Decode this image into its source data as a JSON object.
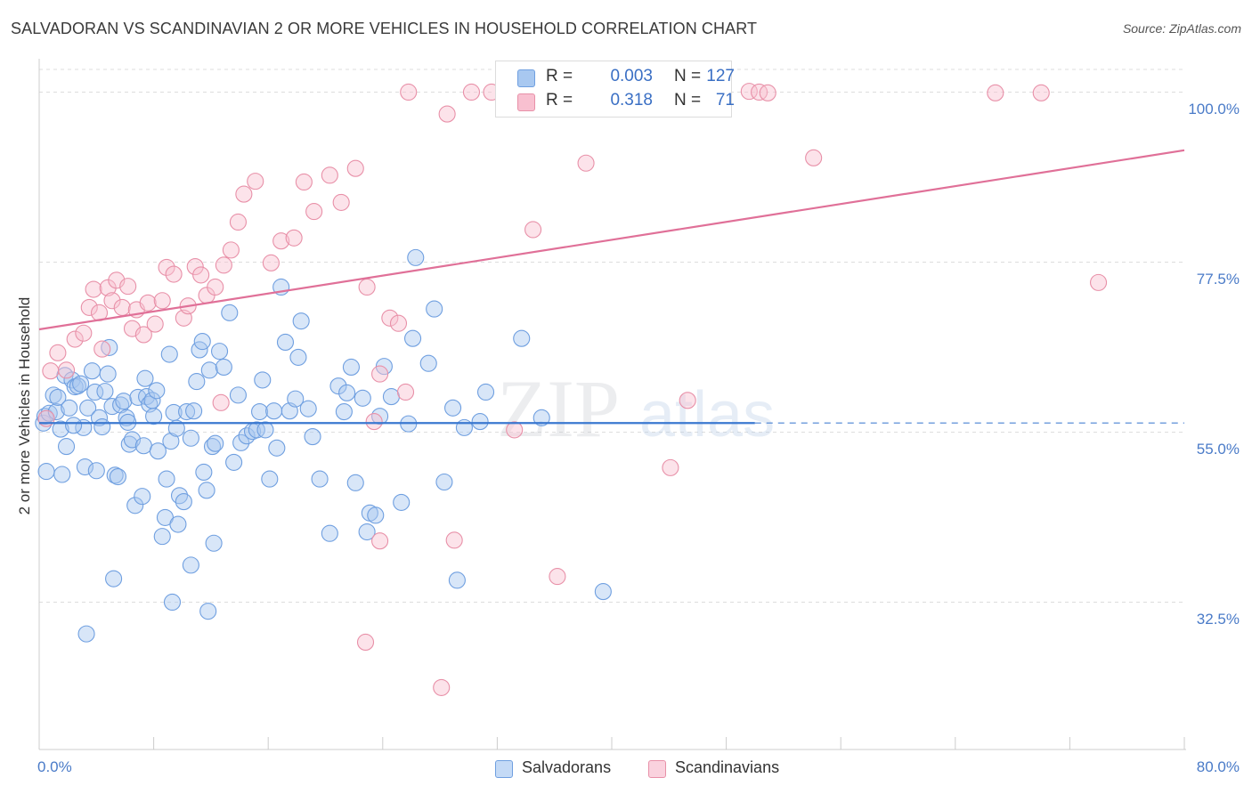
{
  "title": "SALVADORAN VS SCANDINAVIAN 2 OR MORE VEHICLES IN HOUSEHOLD CORRELATION CHART",
  "source": "Source: ZipAtlas.com",
  "watermark": {
    "part1": "ZIP",
    "part2": "atlas"
  },
  "stats": [
    {
      "r_label": "R =",
      "r": "0.003",
      "n_label": "N =",
      "n": "127",
      "color": "#a8c8f0",
      "border": "#6f9fe0"
    },
    {
      "r_label": "R =",
      "r": "0.318",
      "n_label": "N =",
      "n": "71",
      "color": "#f8c0d0",
      "border": "#e890a8"
    }
  ],
  "legend": [
    {
      "label": "Salvadorans",
      "color": "#a8c8f0",
      "border": "#6f9fe0"
    },
    {
      "label": "Scandinavians",
      "color": "#f8c0d0",
      "border": "#e890a8"
    }
  ],
  "chart_data": {
    "type": "scatter",
    "title": "SALVADORAN VS SCANDINAVIAN 2 OR MORE VEHICLES IN HOUSEHOLD CORRELATION CHART",
    "xlabel": "",
    "ylabel": "2 or more Vehicles in Household",
    "xlim": [
      0,
      80
    ],
    "ylim": [
      13,
      103
    ],
    "x_tick_labels": [
      "0.0%",
      "80.0%"
    ],
    "y_ticks": [
      32.5,
      55.0,
      77.5,
      100.0
    ],
    "y_tick_labels": [
      "32.5%",
      "55.0%",
      "77.5%",
      "100.0%"
    ],
    "grid": true,
    "legend_position": "bottom-center",
    "series": [
      {
        "name": "Salvadorans",
        "color": "#6f9fe0",
        "fill": "#a8c8f0",
        "trend": {
          "x": [
            0,
            50
          ],
          "y": [
            56.2,
            56.2
          ],
          "dashed_to": 80,
          "color": "#3a78d0"
        },
        "points": [
          [
            0.3,
            56.2
          ],
          [
            0.4,
            57.1
          ],
          [
            0.5,
            49.8
          ],
          [
            0.7,
            57.5
          ],
          [
            1,
            59.9
          ],
          [
            1.2,
            57.7
          ],
          [
            1.3,
            59.6
          ],
          [
            1.6,
            49.4
          ],
          [
            1.8,
            62.5
          ],
          [
            1.9,
            53.1
          ],
          [
            2.1,
            58.2
          ],
          [
            2.3,
            61.9
          ],
          [
            2.5,
            61
          ],
          [
            2.7,
            61.1
          ],
          [
            2.9,
            61.4
          ],
          [
            3.1,
            55.6
          ],
          [
            3.2,
            50.4
          ],
          [
            3.4,
            58.2
          ],
          [
            3.7,
            63.1
          ],
          [
            3.9,
            60.3
          ],
          [
            4,
            49.9
          ],
          [
            4.2,
            56.9
          ],
          [
            4.4,
            55.7
          ],
          [
            4.6,
            60.4
          ],
          [
            4.8,
            62.7
          ],
          [
            4.9,
            66.2
          ],
          [
            5.1,
            58.4
          ],
          [
            5.3,
            49.3
          ],
          [
            5.5,
            49.1
          ],
          [
            5.7,
            58.6
          ],
          [
            5.9,
            59.1
          ],
          [
            6.1,
            56.9
          ],
          [
            6.3,
            53.4
          ],
          [
            6.5,
            54
          ],
          [
            6.7,
            45.3
          ],
          [
            6.9,
            59.6
          ],
          [
            7.2,
            46.5
          ],
          [
            7.3,
            53.2
          ],
          [
            7.4,
            62.1
          ],
          [
            7.5,
            59.7
          ],
          [
            7.7,
            58.7
          ],
          [
            7.9,
            59.2
          ],
          [
            8,
            57.1
          ],
          [
            8.2,
            60.5
          ],
          [
            8.3,
            52.5
          ],
          [
            8.6,
            41.2
          ],
          [
            8.8,
            43.7
          ],
          [
            8.9,
            48.8
          ],
          [
            9.1,
            65.3
          ],
          [
            9.2,
            53.8
          ],
          [
            9.4,
            57.6
          ],
          [
            9.6,
            55.5
          ],
          [
            9.8,
            46.6
          ],
          [
            10.1,
            45.8
          ],
          [
            10.3,
            57.7
          ],
          [
            10.6,
            54.2
          ],
          [
            10.8,
            57.8
          ],
          [
            11,
            61.7
          ],
          [
            11.2,
            65.9
          ],
          [
            11.4,
            67
          ],
          [
            11.5,
            49.7
          ],
          [
            11.7,
            47.3
          ],
          [
            11.9,
            63.2
          ],
          [
            12.1,
            53.1
          ],
          [
            12.3,
            53.5
          ],
          [
            12.6,
            65.7
          ],
          [
            12.9,
            63.6
          ],
          [
            13.3,
            70.8
          ],
          [
            13.6,
            51
          ],
          [
            13.9,
            59.9
          ],
          [
            14.1,
            53.6
          ],
          [
            14.5,
            54.5
          ],
          [
            14.9,
            55.1
          ],
          [
            15.2,
            55.3
          ],
          [
            15.4,
            57.7
          ],
          [
            15.6,
            61.9
          ],
          [
            16.1,
            48.8
          ],
          [
            16.4,
            57.8
          ],
          [
            16.6,
            52.9
          ],
          [
            16.9,
            74.2
          ],
          [
            17.2,
            66.9
          ],
          [
            17.5,
            57.8
          ],
          [
            17.9,
            59.4
          ],
          [
            18.1,
            64.9
          ],
          [
            18.3,
            69.7
          ],
          [
            18.8,
            58.1
          ],
          [
            19.1,
            54.4
          ],
          [
            19.6,
            48.8
          ],
          [
            20.3,
            41.6
          ],
          [
            20.9,
            61.1
          ],
          [
            21.3,
            57.7
          ],
          [
            21.5,
            60.2
          ],
          [
            21.8,
            63.6
          ],
          [
            22.1,
            48.3
          ],
          [
            22.6,
            59.5
          ],
          [
            22.9,
            41.8
          ],
          [
            23.1,
            44.3
          ],
          [
            23.5,
            44
          ],
          [
            23.8,
            57.1
          ],
          [
            24.1,
            63.7
          ],
          [
            24.6,
            59.7
          ],
          [
            25.3,
            45.7
          ],
          [
            25.8,
            56.1
          ],
          [
            26.1,
            67.4
          ],
          [
            26.3,
            78.1
          ],
          [
            27.2,
            64.1
          ],
          [
            27.6,
            71.3
          ],
          [
            28.3,
            48.4
          ],
          [
            28.9,
            58.2
          ],
          [
            29.7,
            55.6
          ],
          [
            30.8,
            56.4
          ],
          [
            31.2,
            60.3
          ],
          [
            33.7,
            67.4
          ],
          [
            35.1,
            56.9
          ],
          [
            39.4,
            33.9
          ],
          [
            3.3,
            28.3
          ],
          [
            9.7,
            42.8
          ],
          [
            10.6,
            37.4
          ],
          [
            12.2,
            40.3
          ],
          [
            5.2,
            35.6
          ],
          [
            11.8,
            31.3
          ],
          [
            1.5,
            55.4
          ],
          [
            2.4,
            55.9
          ],
          [
            6.2,
            56.3
          ],
          [
            9.3,
            32.5
          ],
          [
            15.8,
            55.3
          ],
          [
            29.2,
            35.4
          ]
        ]
      },
      {
        "name": "Scandinavians",
        "color": "#e890a8",
        "fill": "#f8c0d0",
        "trend": {
          "x": [
            0,
            80
          ],
          "y": [
            68.6,
            92.3
          ],
          "color": "#e07098"
        },
        "points": [
          [
            0.5,
            56.8
          ],
          [
            0.8,
            63.1
          ],
          [
            1.3,
            65.5
          ],
          [
            1.9,
            63.2
          ],
          [
            2.5,
            67.3
          ],
          [
            3.1,
            68.1
          ],
          [
            3.5,
            71.5
          ],
          [
            3.8,
            73.9
          ],
          [
            4.2,
            70.8
          ],
          [
            4.4,
            66
          ],
          [
            4.8,
            74.1
          ],
          [
            5.1,
            72.4
          ],
          [
            5.4,
            75.1
          ],
          [
            5.8,
            71.5
          ],
          [
            6.2,
            74.3
          ],
          [
            6.5,
            68.7
          ],
          [
            6.8,
            71.2
          ],
          [
            7.3,
            67.9
          ],
          [
            7.6,
            72.1
          ],
          [
            8.1,
            69.3
          ],
          [
            8.6,
            72.4
          ],
          [
            8.9,
            76.8
          ],
          [
            9.4,
            75.9
          ],
          [
            10.1,
            70.1
          ],
          [
            10.4,
            71.7
          ],
          [
            10.9,
            76.9
          ],
          [
            11.3,
            75.8
          ],
          [
            11.7,
            73.1
          ],
          [
            12.3,
            74.2
          ],
          [
            12.9,
            77.1
          ],
          [
            13.4,
            79.1
          ],
          [
            13.9,
            82.8
          ],
          [
            14.3,
            86.5
          ],
          [
            15.1,
            88.2
          ],
          [
            16.2,
            77.4
          ],
          [
            16.9,
            80.3
          ],
          [
            17.8,
            80.7
          ],
          [
            18.5,
            88.1
          ],
          [
            19.2,
            84.2
          ],
          [
            20.3,
            89
          ],
          [
            21.1,
            85.4
          ],
          [
            22.1,
            89.9
          ],
          [
            22.9,
            74.2
          ],
          [
            23.4,
            56.4
          ],
          [
            23.8,
            62.7
          ],
          [
            24.5,
            70.1
          ],
          [
            25.1,
            69.4
          ],
          [
            25.8,
            100
          ],
          [
            28.5,
            97.1
          ],
          [
            30.2,
            100
          ],
          [
            31.6,
            100
          ],
          [
            33.2,
            55.3
          ],
          [
            34.5,
            81.8
          ],
          [
            38.2,
            90.6
          ],
          [
            41.6,
            99.8
          ],
          [
            45.3,
            59.2
          ],
          [
            49.6,
            100.1
          ],
          [
            50.3,
            100
          ],
          [
            50.9,
            99.9
          ],
          [
            54.1,
            91.3
          ],
          [
            66.8,
            99.9
          ],
          [
            70,
            99.9
          ],
          [
            74,
            74.8
          ],
          [
            44.1,
            50.3
          ],
          [
            36.2,
            35.9
          ],
          [
            22.8,
            27.2
          ],
          [
            25.6,
            60.3
          ],
          [
            28.1,
            21.2
          ],
          [
            29,
            40.7
          ],
          [
            23.8,
            40.6
          ],
          [
            12.7,
            58.9
          ]
        ]
      }
    ]
  }
}
